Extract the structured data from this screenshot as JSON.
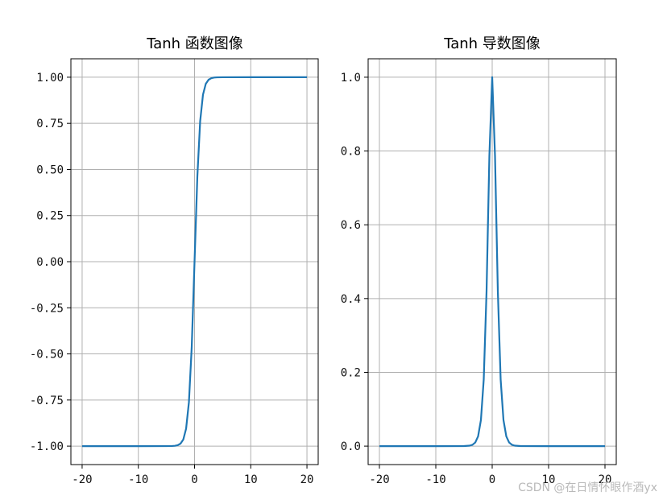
{
  "chart_data": [
    {
      "type": "line",
      "title": "Tanh 函数图像",
      "xlabel": "",
      "ylabel": "",
      "xlim": [
        -22,
        22
      ],
      "ylim": [
        -1.1,
        1.1
      ],
      "grid": true,
      "line_color": "#1f77b4",
      "x_ticks": [
        -20,
        -10,
        0,
        10,
        20
      ],
      "x_tick_labels": [
        "-20",
        "-10",
        "0",
        "10",
        "20"
      ],
      "y_ticks": [
        1.0,
        0.75,
        0.5,
        0.25,
        0.0,
        -0.25,
        -0.5,
        -0.75,
        -1.0
      ],
      "y_tick_labels": [
        "1.00",
        "0.75",
        "0.50",
        "0.25",
        "0.00",
        "-0.25",
        "-0.50",
        "-0.75",
        "-1.00"
      ],
      "series": [
        {
          "x": [
            -20,
            -10,
            -5,
            -4,
            -3.5,
            -3,
            -2.5,
            -2,
            -1.5,
            -1,
            -0.5,
            0,
            0.5,
            1,
            1.5,
            2,
            2.5,
            3,
            3.5,
            4,
            5,
            10,
            20
          ],
          "y": [
            -1.0,
            -1.0,
            -0.9999,
            -0.9993,
            -0.9982,
            -0.9951,
            -0.9866,
            -0.964,
            -0.9051,
            -0.7616,
            -0.4621,
            0.0,
            0.4621,
            0.7616,
            0.9051,
            0.964,
            0.9866,
            0.9951,
            0.9982,
            0.9993,
            0.9999,
            1.0,
            1.0
          ]
        }
      ]
    },
    {
      "type": "line",
      "title": "Tanh 导数图像",
      "xlabel": "",
      "ylabel": "",
      "xlim": [
        -22,
        22
      ],
      "ylim": [
        -0.05,
        1.05
      ],
      "grid": true,
      "line_color": "#1f77b4",
      "x_ticks": [
        -20,
        -10,
        0,
        10,
        20
      ],
      "x_tick_labels": [
        "-20",
        "-10",
        "0",
        "10",
        "20"
      ],
      "y_ticks": [
        1.0,
        0.8,
        0.6,
        0.4,
        0.2,
        0.0
      ],
      "y_tick_labels": [
        "1.0",
        "0.8",
        "0.6",
        "0.4",
        "0.2",
        "0.0"
      ],
      "series": [
        {
          "x": [
            -20,
            -10,
            -5,
            -4,
            -3.5,
            -3,
            -2.5,
            -2,
            -1.5,
            -1,
            -0.5,
            0,
            0.5,
            1,
            1.5,
            2,
            2.5,
            3,
            3.5,
            4,
            5,
            10,
            20
          ],
          "y": [
            0.0,
            0.0,
            0.0002,
            0.0013,
            0.0036,
            0.0099,
            0.0266,
            0.0707,
            0.1807,
            0.42,
            0.7864,
            1.0,
            0.7864,
            0.42,
            0.1807,
            0.0707,
            0.0266,
            0.0099,
            0.0036,
            0.0013,
            0.0002,
            0.0,
            0.0
          ]
        }
      ]
    }
  ],
  "watermark": "CSDN @在日情怀眼作酒yx"
}
